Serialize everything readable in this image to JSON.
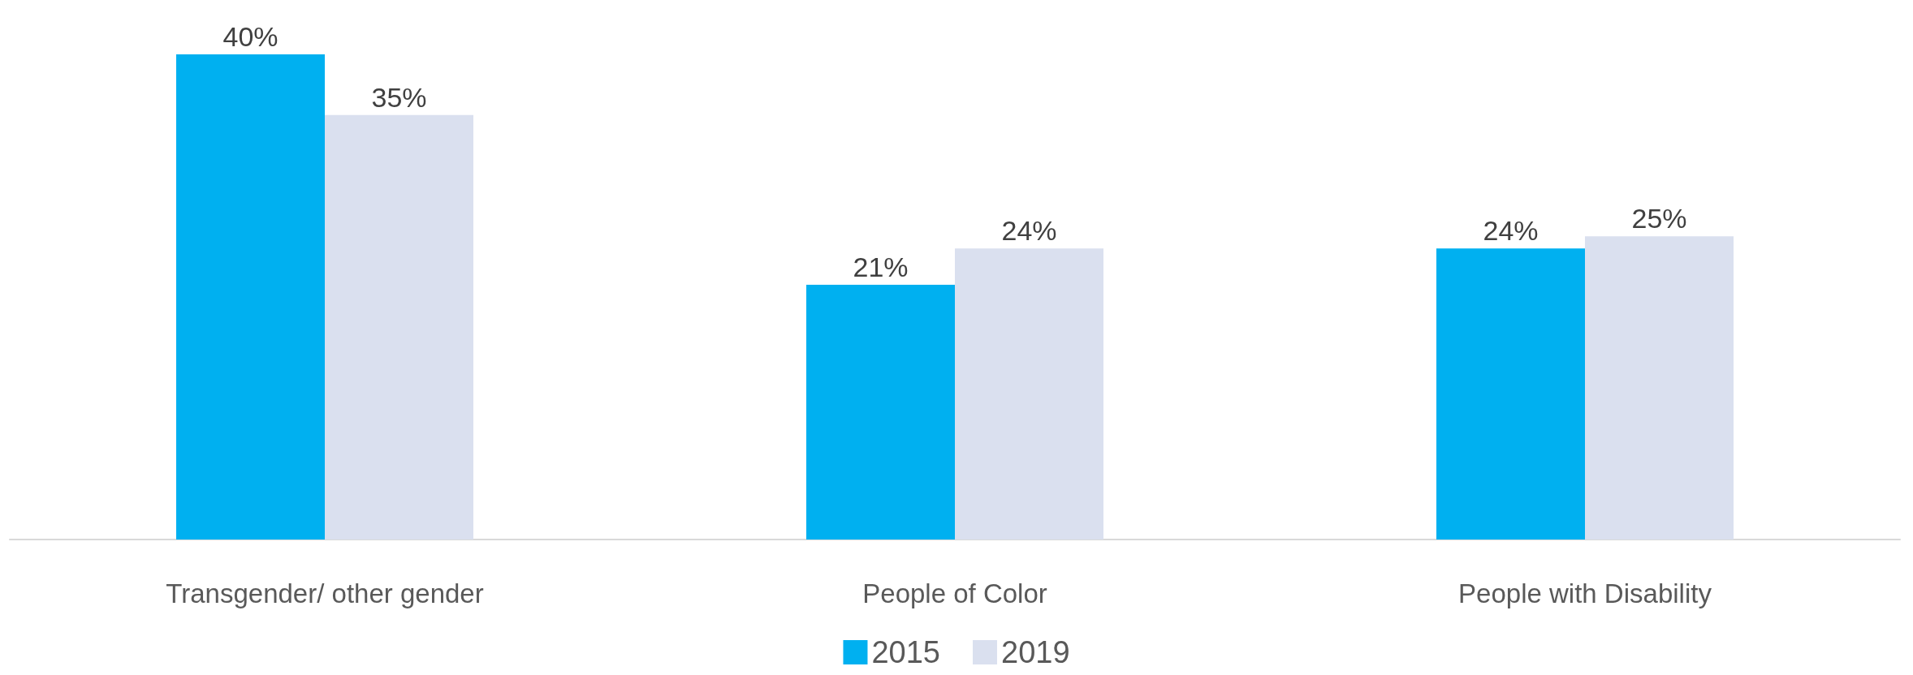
{
  "chart_data": {
    "type": "bar",
    "categories": [
      "Transgender/ other gender",
      "People of Color",
      "People with Disability"
    ],
    "series": [
      {
        "name": "2015",
        "color": "#00b0f0",
        "values": [
          40,
          21,
          24
        ],
        "value_labels": [
          "40%",
          "21%",
          "24%"
        ]
      },
      {
        "name": "2019",
        "color": "#dae0ef",
        "values": [
          35,
          24,
          25
        ],
        "value_labels": [
          "35%",
          "24%",
          "25%"
        ]
      }
    ],
    "legend": "bottom"
  }
}
